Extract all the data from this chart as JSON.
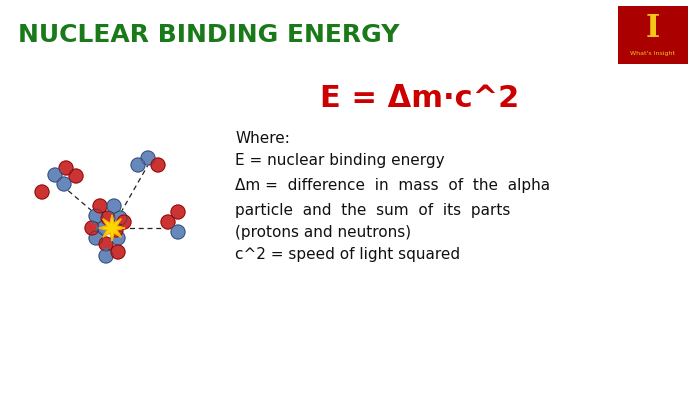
{
  "title": "NUCLEAR BINDING ENERGY",
  "title_color": "#1a7a1a",
  "title_fontsize": 18,
  "formula": "E = Δm·c^2",
  "formula_color": "#cc0000",
  "formula_fontsize": 22,
  "where_label": "Where:",
  "line1": "E = nuclear binding energy",
  "line2": "Δm =  difference  in  mass  of  the  alpha",
  "line3": "particle  and  the  sum  of  its  parts",
  "line4": "(protons and neutrons)",
  "line5": "c^2 = speed of light squared",
  "text_color": "#111111",
  "text_fontsize": 11,
  "bg_color": "#ffffff",
  "logo_bg": "#aa0000",
  "logo_letter": "I",
  "logo_letter_color": "#f5c518",
  "logo_subtext": "What's Insight",
  "logo_subtext_color": "#f5c518",
  "proton_color": "#cc3333",
  "neutron_color": "#6688bb",
  "star_color": "#FFD700",
  "star_edge_color": "#FFA500"
}
